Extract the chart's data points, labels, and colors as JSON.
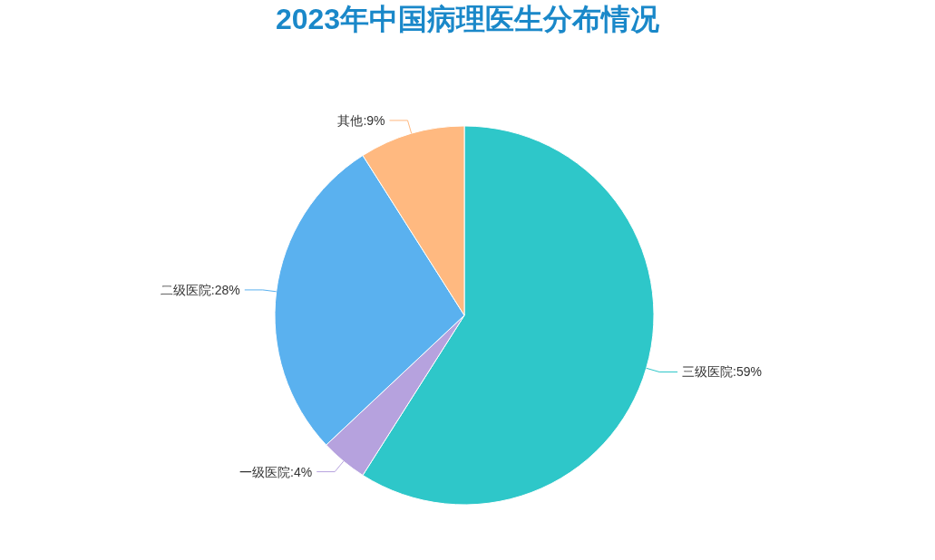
{
  "chart_data": {
    "type": "pie",
    "title": "2023年中国病理医生分布情况",
    "categories": [
      "三级医院",
      "一级医院",
      "二级医院",
      "其他"
    ],
    "values": [
      59,
      4,
      28,
      9
    ],
    "colors": [
      "#2ec7c9",
      "#b6a2de",
      "#5ab1ef",
      "#ffb980"
    ],
    "value_labels": [
      ":59%",
      ":4%",
      ":28%",
      ":9%"
    ]
  }
}
